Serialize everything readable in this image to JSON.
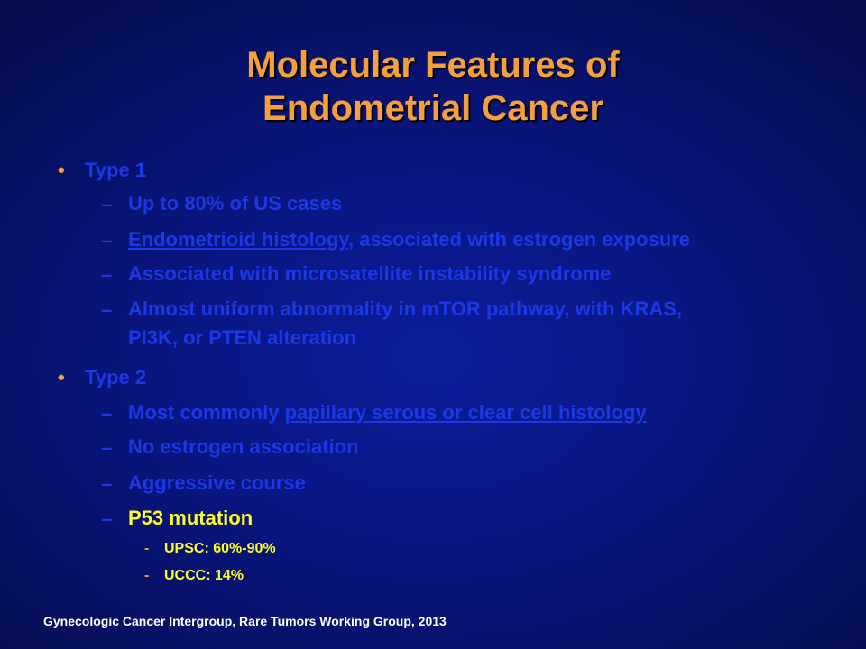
{
  "title": {
    "line1": "Molecular Features of",
    "line2": "Endometrial Cancer"
  },
  "bullets": [
    {
      "label": "Type 1",
      "items": [
        {
          "text": "Up to 80% of US cases"
        },
        {
          "underlined": "Endometrioid histology",
          "rest": ", associated with estrogen exposure"
        },
        {
          "text": "Associated with microsatellite instability syndrome"
        },
        {
          "line1": "Almost uniform abnormality in mTOR pathway, with KRAS,",
          "line2": "PI3K, or PTEN alteration"
        }
      ]
    },
    {
      "label": "Type 2",
      "items": [
        {
          "prefix": "Most commonly ",
          "underlined": "papillary serous or clear cell histology"
        },
        {
          "text": "No estrogen association"
        },
        {
          "text": "Aggressive course"
        },
        {
          "text": "P53 mutation",
          "highlight": true,
          "subitems": [
            "UPSC: 60%-90%",
            "UCCC: 14%"
          ]
        }
      ]
    }
  ],
  "bullet_symbol": "•",
  "dash_symbol": "–",
  "sub_dash_symbol": "-",
  "footer": "Gynecologic Cancer Intergroup, Rare Tumors Working Group, 2013",
  "colors": {
    "title": "#f5a03a",
    "body_text": "#1c38e6",
    "highlight": "#ffff22",
    "footer": "#ffffff",
    "background": "#0a1580"
  }
}
